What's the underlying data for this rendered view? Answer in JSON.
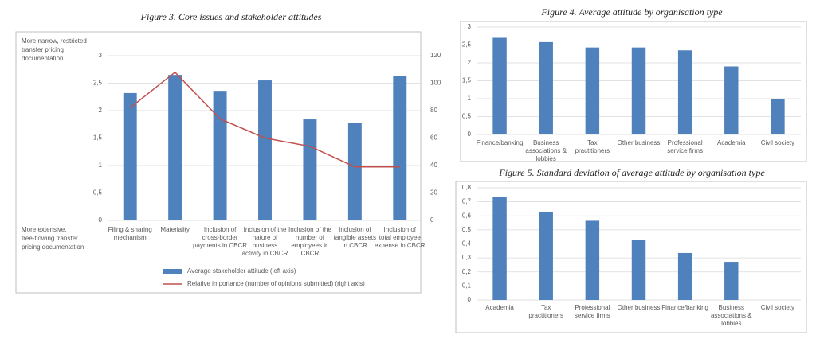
{
  "chart_data": [
    {
      "type": "bar",
      "title": "Figure 3. Core issues and stakeholder attitudes",
      "annotations": [
        "More narrow, restricted transfer pricing documentation",
        "More extensive, free-flowing transfer pricing documentation"
      ],
      "categories": [
        "Filing & sharing mechanism",
        "Materiality",
        "Inclusion of cross-border payments in CBCR",
        "Inclusion of the nature of business activity in CBCR",
        "Inclusion of the number of employees in CBCR",
        "Inclusion of tangible assets in CBCR",
        "Inclusion of total employee expense in CBCR"
      ],
      "series": [
        {
          "name": "Average stakeholder attitude (left axis)",
          "type": "bar",
          "color": "#4f81bd",
          "values": [
            2.32,
            2.65,
            2.36,
            2.55,
            1.84,
            1.78,
            2.63
          ]
        },
        {
          "name": "Relative importance (number of opinions submitted) (right axis)",
          "type": "line",
          "axis": "y2",
          "color": "#c0504d",
          "values": [
            82,
            108,
            74,
            60,
            54,
            39,
            39
          ]
        }
      ],
      "ylim": [
        0,
        3
      ],
      "yticks": [
        0,
        {
          "value": 0.5,
          "label": "0,5"
        },
        1,
        {
          "value": 1.5,
          "label": "1,5"
        },
        2,
        {
          "value": 2.5,
          "label": "2,5"
        },
        3
      ],
      "y2lim": [
        0,
        120
      ],
      "y2ticks": [
        0,
        20,
        40,
        60,
        80,
        100,
        120
      ],
      "grid": true,
      "legend": "bottom"
    },
    {
      "type": "bar",
      "title": "Figure 4. Average attitude by organisation type",
      "categories": [
        "Finance/banking",
        "Business associations & lobbies",
        "Tax practitioners",
        "Other business",
        "Professional service firms",
        "Academia",
        "Civil society"
      ],
      "values": [
        2.7,
        2.58,
        2.43,
        2.43,
        2.35,
        1.9,
        1.0
      ],
      "color": "#4f81bd",
      "ylim": [
        0,
        3
      ],
      "yticks": [
        0,
        {
          "value": 0.5,
          "label": "0,5"
        },
        1,
        {
          "value": 1.5,
          "label": "1,5"
        },
        2,
        {
          "value": 2.5,
          "label": "2,5"
        },
        3
      ],
      "grid": true
    },
    {
      "type": "bar",
      "title": "Figure 5. Standard deviation of average attitude by organisation type",
      "categories": [
        "Academia",
        "Tax practitioners",
        "Professional service firms",
        "Other business",
        "Finance/banking",
        "Business associations & lobbies",
        "Civil society"
      ],
      "values": [
        0.735,
        0.63,
        0.565,
        0.43,
        0.335,
        0.272,
        0
      ],
      "color": "#4f81bd",
      "ylim": [
        0,
        0.8
      ],
      "yticks": [
        0,
        {
          "value": 0.1,
          "label": "0,1"
        },
        {
          "value": 0.2,
          "label": "0,2"
        },
        {
          "value": 0.3,
          "label": "0,3"
        },
        {
          "value": 0.4,
          "label": "0,4"
        },
        {
          "value": 0.5,
          "label": "0,5"
        },
        {
          "value": 0.6,
          "label": "0,6"
        },
        {
          "value": 0.7,
          "label": "0,7"
        },
        {
          "value": 0.8,
          "label": "0,8"
        }
      ],
      "grid": true
    }
  ]
}
